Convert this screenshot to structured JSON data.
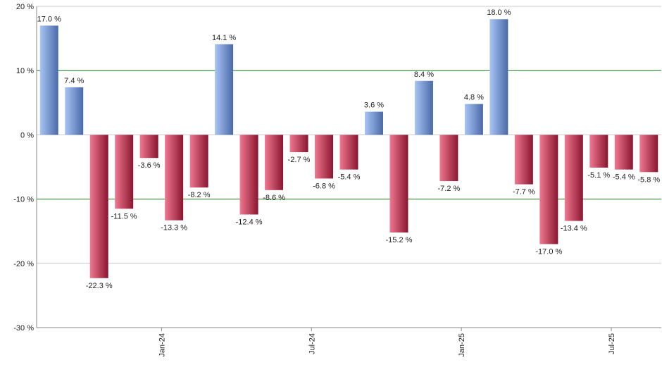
{
  "chart_data": {
    "type": "bar",
    "title": "",
    "xlabel": "",
    "ylabel": "",
    "ylim": [
      -30,
      20
    ],
    "yticks": [
      20,
      10,
      0,
      -10,
      -20,
      -30
    ],
    "ytick_labels": [
      "20 %",
      "10 %",
      "0 %",
      "-10 %",
      "-20 %",
      "-30 %"
    ],
    "highlighted_gridlines": [
      10,
      -10
    ],
    "grid": true,
    "value_suffix": " %",
    "values": [
      17.0,
      7.4,
      -22.3,
      -11.5,
      -3.6,
      -13.3,
      -8.2,
      14.1,
      -12.4,
      -8.6,
      -2.7,
      -6.8,
      -5.4,
      3.6,
      -15.2,
      8.4,
      -7.2,
      4.8,
      18.0,
      -7.7,
      -17.0,
      -13.4,
      -5.1,
      -5.4,
      -5.8
    ],
    "value_labels": [
      "17.0 %",
      "7.4 %",
      "-22.3 %",
      "-11.5 %",
      "-3.6 %",
      "-13.3 %",
      "-8.2 %",
      "14.1 %",
      "-12.4 %",
      "-8.6 %",
      "-2.7 %",
      "-6.8 %",
      "-5.4 %",
      "3.6 %",
      "-15.2 %",
      "8.4 %",
      "-7.2 %",
      "4.8 %",
      "18.0 %",
      "-7.7 %",
      "-17.0 %",
      "-13.4 %",
      "-5.1 %",
      "-5.4 %",
      "-5.8 %"
    ],
    "x_tick_labels": [
      {
        "after_bar": 4,
        "label": "Jan-24"
      },
      {
        "after_bar": 10,
        "label": "Jul-24"
      },
      {
        "after_bar": 16,
        "label": "Jan-25"
      },
      {
        "after_bar": 22,
        "label": "Jul-25"
      }
    ],
    "colors": {
      "positive_light": "#a9c4f5",
      "positive_dark": "#4a6aa8",
      "negative_light": "#f07890",
      "negative_dark": "#8a1630",
      "gridline": "#c8c8c8",
      "highlight_gridline": "#1a7a1a",
      "axis": "#888888"
    }
  }
}
